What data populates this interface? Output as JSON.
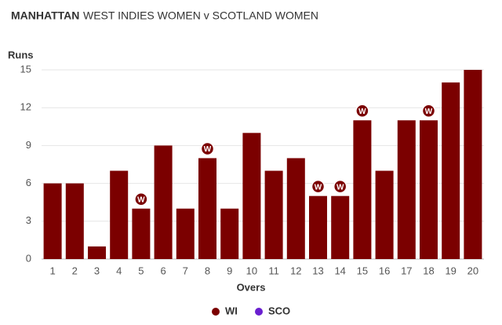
{
  "chart_data": {
    "type": "bar",
    "title": "MANHATTAN",
    "subtitle": "WEST INDIES WOMEN v SCOTLAND WOMEN",
    "y_label": "Runs",
    "x_label": "Overs",
    "categories": [
      "1",
      "2",
      "3",
      "4",
      "5",
      "6",
      "7",
      "8",
      "9",
      "10",
      "11",
      "12",
      "13",
      "14",
      "15",
      "16",
      "17",
      "18",
      "19",
      "20"
    ],
    "series": [
      {
        "name": "WI",
        "color": "#7b0000",
        "values": [
          6,
          6,
          1,
          7,
          4,
          9,
          4,
          8,
          4,
          10,
          7,
          8,
          5,
          5,
          11,
          7,
          11,
          11,
          14,
          15
        ],
        "wickets": [
          0,
          0,
          0,
          0,
          1,
          0,
          0,
          1,
          0,
          0,
          0,
          0,
          1,
          1,
          1,
          0,
          0,
          1,
          0,
          0
        ]
      },
      {
        "name": "SCO",
        "color": "#6a1fd0",
        "values": [
          null,
          null,
          null,
          null,
          null,
          null,
          null,
          null,
          null,
          null,
          null,
          null,
          null,
          null,
          null,
          null,
          null,
          null,
          null,
          null
        ]
      }
    ],
    "wicket_label": "W",
    "ylim": [
      0,
      15
    ],
    "yticks": [
      0,
      3,
      6,
      9,
      12,
      15
    ],
    "grid": true
  }
}
